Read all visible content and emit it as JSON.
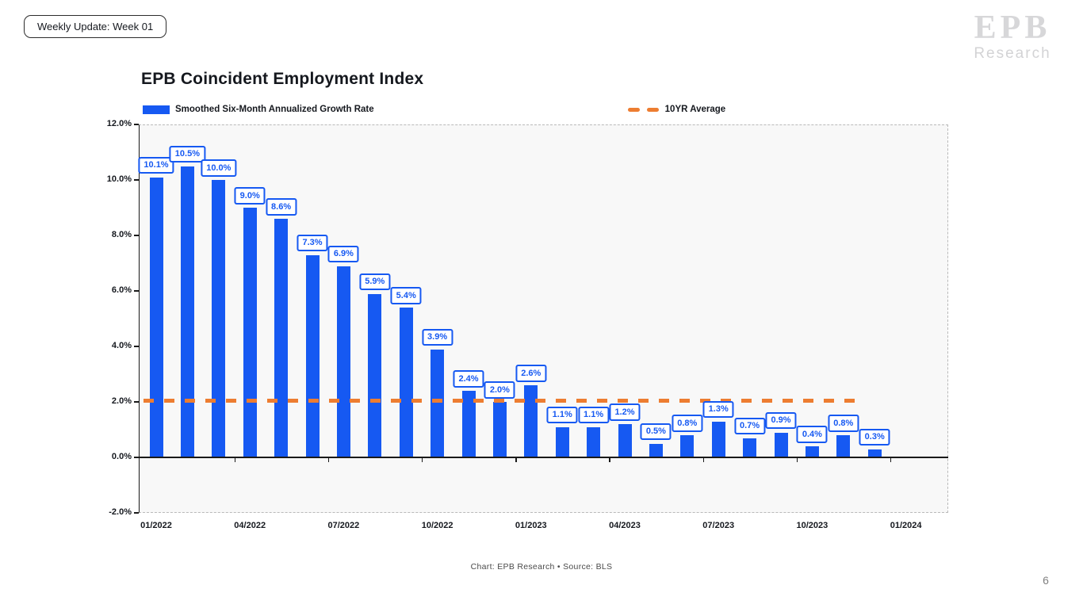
{
  "page": {
    "badge": "Weekly Update: Week 01",
    "footer": "Chart: EPB Research  •  Source: BLS",
    "page_number": "6"
  },
  "logo": {
    "text": "EPB",
    "subtext": "Research"
  },
  "chart_data": {
    "type": "bar",
    "title": "EPB Coincident Employment Index",
    "legend": [
      {
        "label": "Smoothed Six-Month Annualized Growth Rate",
        "marker": "bar-swatch"
      },
      {
        "label": "10YR Average",
        "marker": "dashed-line"
      }
    ],
    "categories": [
      "01/2022",
      "02/2022",
      "03/2022",
      "04/2022",
      "05/2022",
      "06/2022",
      "07/2022",
      "08/2022",
      "09/2022",
      "10/2022",
      "11/2022",
      "12/2022",
      "01/2023",
      "02/2023",
      "03/2023",
      "04/2023",
      "05/2023",
      "06/2023",
      "07/2023",
      "08/2023",
      "09/2023",
      "10/2023",
      "11/2023",
      "12/2023"
    ],
    "values": [
      10.1,
      10.5,
      10.0,
      9.0,
      8.6,
      7.3,
      6.9,
      5.9,
      5.4,
      3.9,
      2.4,
      2.0,
      2.6,
      1.1,
      1.1,
      1.2,
      0.5,
      0.8,
      1.3,
      0.7,
      0.9,
      0.4,
      0.8,
      0.3
    ],
    "bar_labels": [
      "10.1%",
      "10.5%",
      "10.0%",
      "9.0%",
      "8.6%",
      "7.3%",
      "6.9%",
      "5.9%",
      "5.4%",
      "3.9%",
      "2.4%",
      "2.0%",
      "2.6%",
      "1.1%",
      "1.1%",
      "1.2%",
      "0.5%",
      "0.8%",
      "1.3%",
      "0.7%",
      "0.9%",
      "0.4%",
      "0.8%",
      "0.3%"
    ],
    "x_tick_labels": [
      "01/2022",
      "04/2022",
      "07/2022",
      "10/2022",
      "01/2023",
      "04/2023",
      "07/2023",
      "10/2023",
      "01/2024"
    ],
    "y_tick_labels": [
      "12.0%",
      "10.0%",
      "8.0%",
      "6.0%",
      "4.0%",
      "2.0%",
      "0.0%",
      "-2.0%"
    ],
    "ylim": [
      -2.0,
      12.0
    ],
    "avg_line_value": 2.05,
    "grid": "off",
    "legend_position": "top-left",
    "colors": {
      "bar": "#1659f2",
      "avg_line": "#ed7d31",
      "plot_bg": "#f8f8f8",
      "label_box_border": "#1659f2",
      "label_text": "#1659f2"
    }
  }
}
